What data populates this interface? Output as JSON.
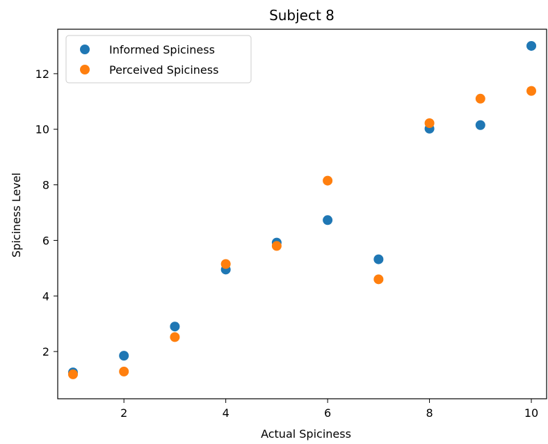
{
  "chart_data": {
    "type": "scatter",
    "title": "Subject 8",
    "xlabel": "Actual Spiciness",
    "ylabel": "Spiciness Level",
    "xlim": [
      0.7,
      10.3
    ],
    "ylim": [
      0.3,
      13.6
    ],
    "xticks": [
      2,
      4,
      6,
      8,
      10
    ],
    "yticks": [
      2,
      4,
      6,
      8,
      10,
      12
    ],
    "xtick_labels": [
      "2",
      "4",
      "6",
      "8",
      "10"
    ],
    "ytick_labels": [
      "2",
      "4",
      "6",
      "8",
      "10",
      "12"
    ],
    "grid": false,
    "legend_position": "top-left",
    "series": [
      {
        "name": "Informed Spiciness",
        "color": "#1f77b4",
        "x": [
          1,
          2,
          3,
          4,
          5,
          6,
          7,
          8,
          9,
          10
        ],
        "y": [
          1.25,
          1.85,
          2.9,
          4.95,
          5.92,
          6.73,
          5.32,
          10.02,
          10.15,
          13.0
        ]
      },
      {
        "name": "Perceived Spiciness",
        "color": "#ff7f0e",
        "x": [
          1,
          2,
          3,
          4,
          5,
          6,
          7,
          8,
          9,
          10
        ],
        "y": [
          1.18,
          1.28,
          2.52,
          5.15,
          5.8,
          8.15,
          4.6,
          10.22,
          11.1,
          11.38
        ]
      }
    ]
  }
}
